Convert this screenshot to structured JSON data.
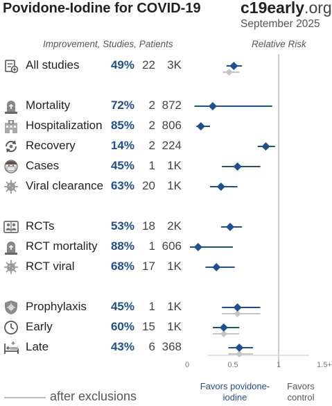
{
  "header": {
    "title": "Povidone-Iodine for COVID-19",
    "brand_main": "c19early",
    "brand_suffix": ".org",
    "date": "September 2025"
  },
  "columns_header": "Improvement, Studies, Patients",
  "rr_header": "Relative Risk",
  "rows": [
    {
      "label": "All studies",
      "icon": "clipboard-plus-icon",
      "improvement": "49%",
      "studies": "22",
      "patients": "3K"
    },
    {
      "label": "Mortality",
      "icon": "tombstone-icon",
      "improvement": "72%",
      "studies": "2",
      "patients": "872"
    },
    {
      "label": "Hospitalization",
      "icon": "hospital-icon",
      "improvement": "85%",
      "studies": "2",
      "patients": "806"
    },
    {
      "label": "Recovery",
      "icon": "recovery-cycle-icon",
      "improvement": "14%",
      "studies": "2",
      "patients": "224"
    },
    {
      "label": "Cases",
      "icon": "masked-face-icon",
      "improvement": "45%",
      "studies": "1",
      "patients": "1K"
    },
    {
      "label": "Viral clearance",
      "icon": "virus-icon",
      "improvement": "63%",
      "studies": "20",
      "patients": "1K"
    },
    {
      "label": "RCTs",
      "icon": "rct-people-icon",
      "improvement": "53%",
      "studies": "18",
      "patients": "2K"
    },
    {
      "label": "RCT mortality",
      "icon": "tombstone-icon",
      "improvement": "88%",
      "studies": "1",
      "patients": "606"
    },
    {
      "label": "RCT viral",
      "icon": "virus-icon",
      "improvement": "68%",
      "studies": "17",
      "patients": "1K"
    },
    {
      "label": "Prophylaxis",
      "icon": "shield-virus-icon",
      "improvement": "45%",
      "studies": "1",
      "patients": "1K"
    },
    {
      "label": "Early",
      "icon": "clock-icon",
      "improvement": "60%",
      "studies": "15",
      "patients": "1K"
    },
    {
      "label": "Late",
      "icon": "hospital-bed-icon",
      "improvement": "43%",
      "studies": "6",
      "patients": "368"
    }
  ],
  "chart_data": {
    "type": "forest",
    "xlabel": "",
    "xlim": [
      0,
      1.5
    ],
    "x_ticks": [
      "0",
      "0.5",
      "1",
      "1.5+"
    ],
    "reference_line": 1,
    "series": [
      {
        "name": "after exclusions"
      }
    ],
    "points": [
      {
        "label": "All studies",
        "rr": 0.51,
        "ci": [
          0.43,
          0.6
        ],
        "excl_rr": 0.46,
        "excl_ci": [
          0.39,
          0.57
        ]
      },
      {
        "label": "Mortality",
        "rr": 0.28,
        "ci": [
          0.08,
          0.93
        ]
      },
      {
        "label": "Hospitalization",
        "rr": 0.15,
        "ci": [
          0.1,
          0.25
        ]
      },
      {
        "label": "Recovery",
        "rr": 0.86,
        "ci": [
          0.77,
          0.96
        ]
      },
      {
        "label": "Cases",
        "rr": 0.55,
        "ci": [
          0.38,
          0.8
        ]
      },
      {
        "label": "Viral clearance",
        "rr": 0.37,
        "ci": [
          0.25,
          0.55
        ]
      },
      {
        "label": "RCTs",
        "rr": 0.47,
        "ci": [
          0.37,
          0.6
        ]
      },
      {
        "label": "RCT mortality",
        "rr": 0.12,
        "ci": [
          0.03,
          0.5
        ]
      },
      {
        "label": "RCT viral",
        "rr": 0.32,
        "ci": [
          0.2,
          0.52
        ]
      },
      {
        "label": "Prophylaxis",
        "rr": 0.55,
        "ci": [
          0.38,
          0.8
        ],
        "excl_rr": 0.55,
        "excl_ci": [
          0.38,
          0.8
        ]
      },
      {
        "label": "Early",
        "rr": 0.4,
        "ci": [
          0.28,
          0.57
        ],
        "excl_rr": 0.4,
        "excl_ci": [
          0.28,
          0.57
        ]
      },
      {
        "label": "Late",
        "rr": 0.57,
        "ci": [
          0.45,
          0.72
        ],
        "excl_rr": 0.57,
        "excl_ci": [
          0.45,
          0.72
        ]
      }
    ],
    "favors_left": "Favors povidone-iodine",
    "favors_right": "Favors control",
    "colors": {
      "main": "#1d4f91",
      "excluded": "#c4c4c4",
      "axis": "#cccccc"
    }
  }
}
